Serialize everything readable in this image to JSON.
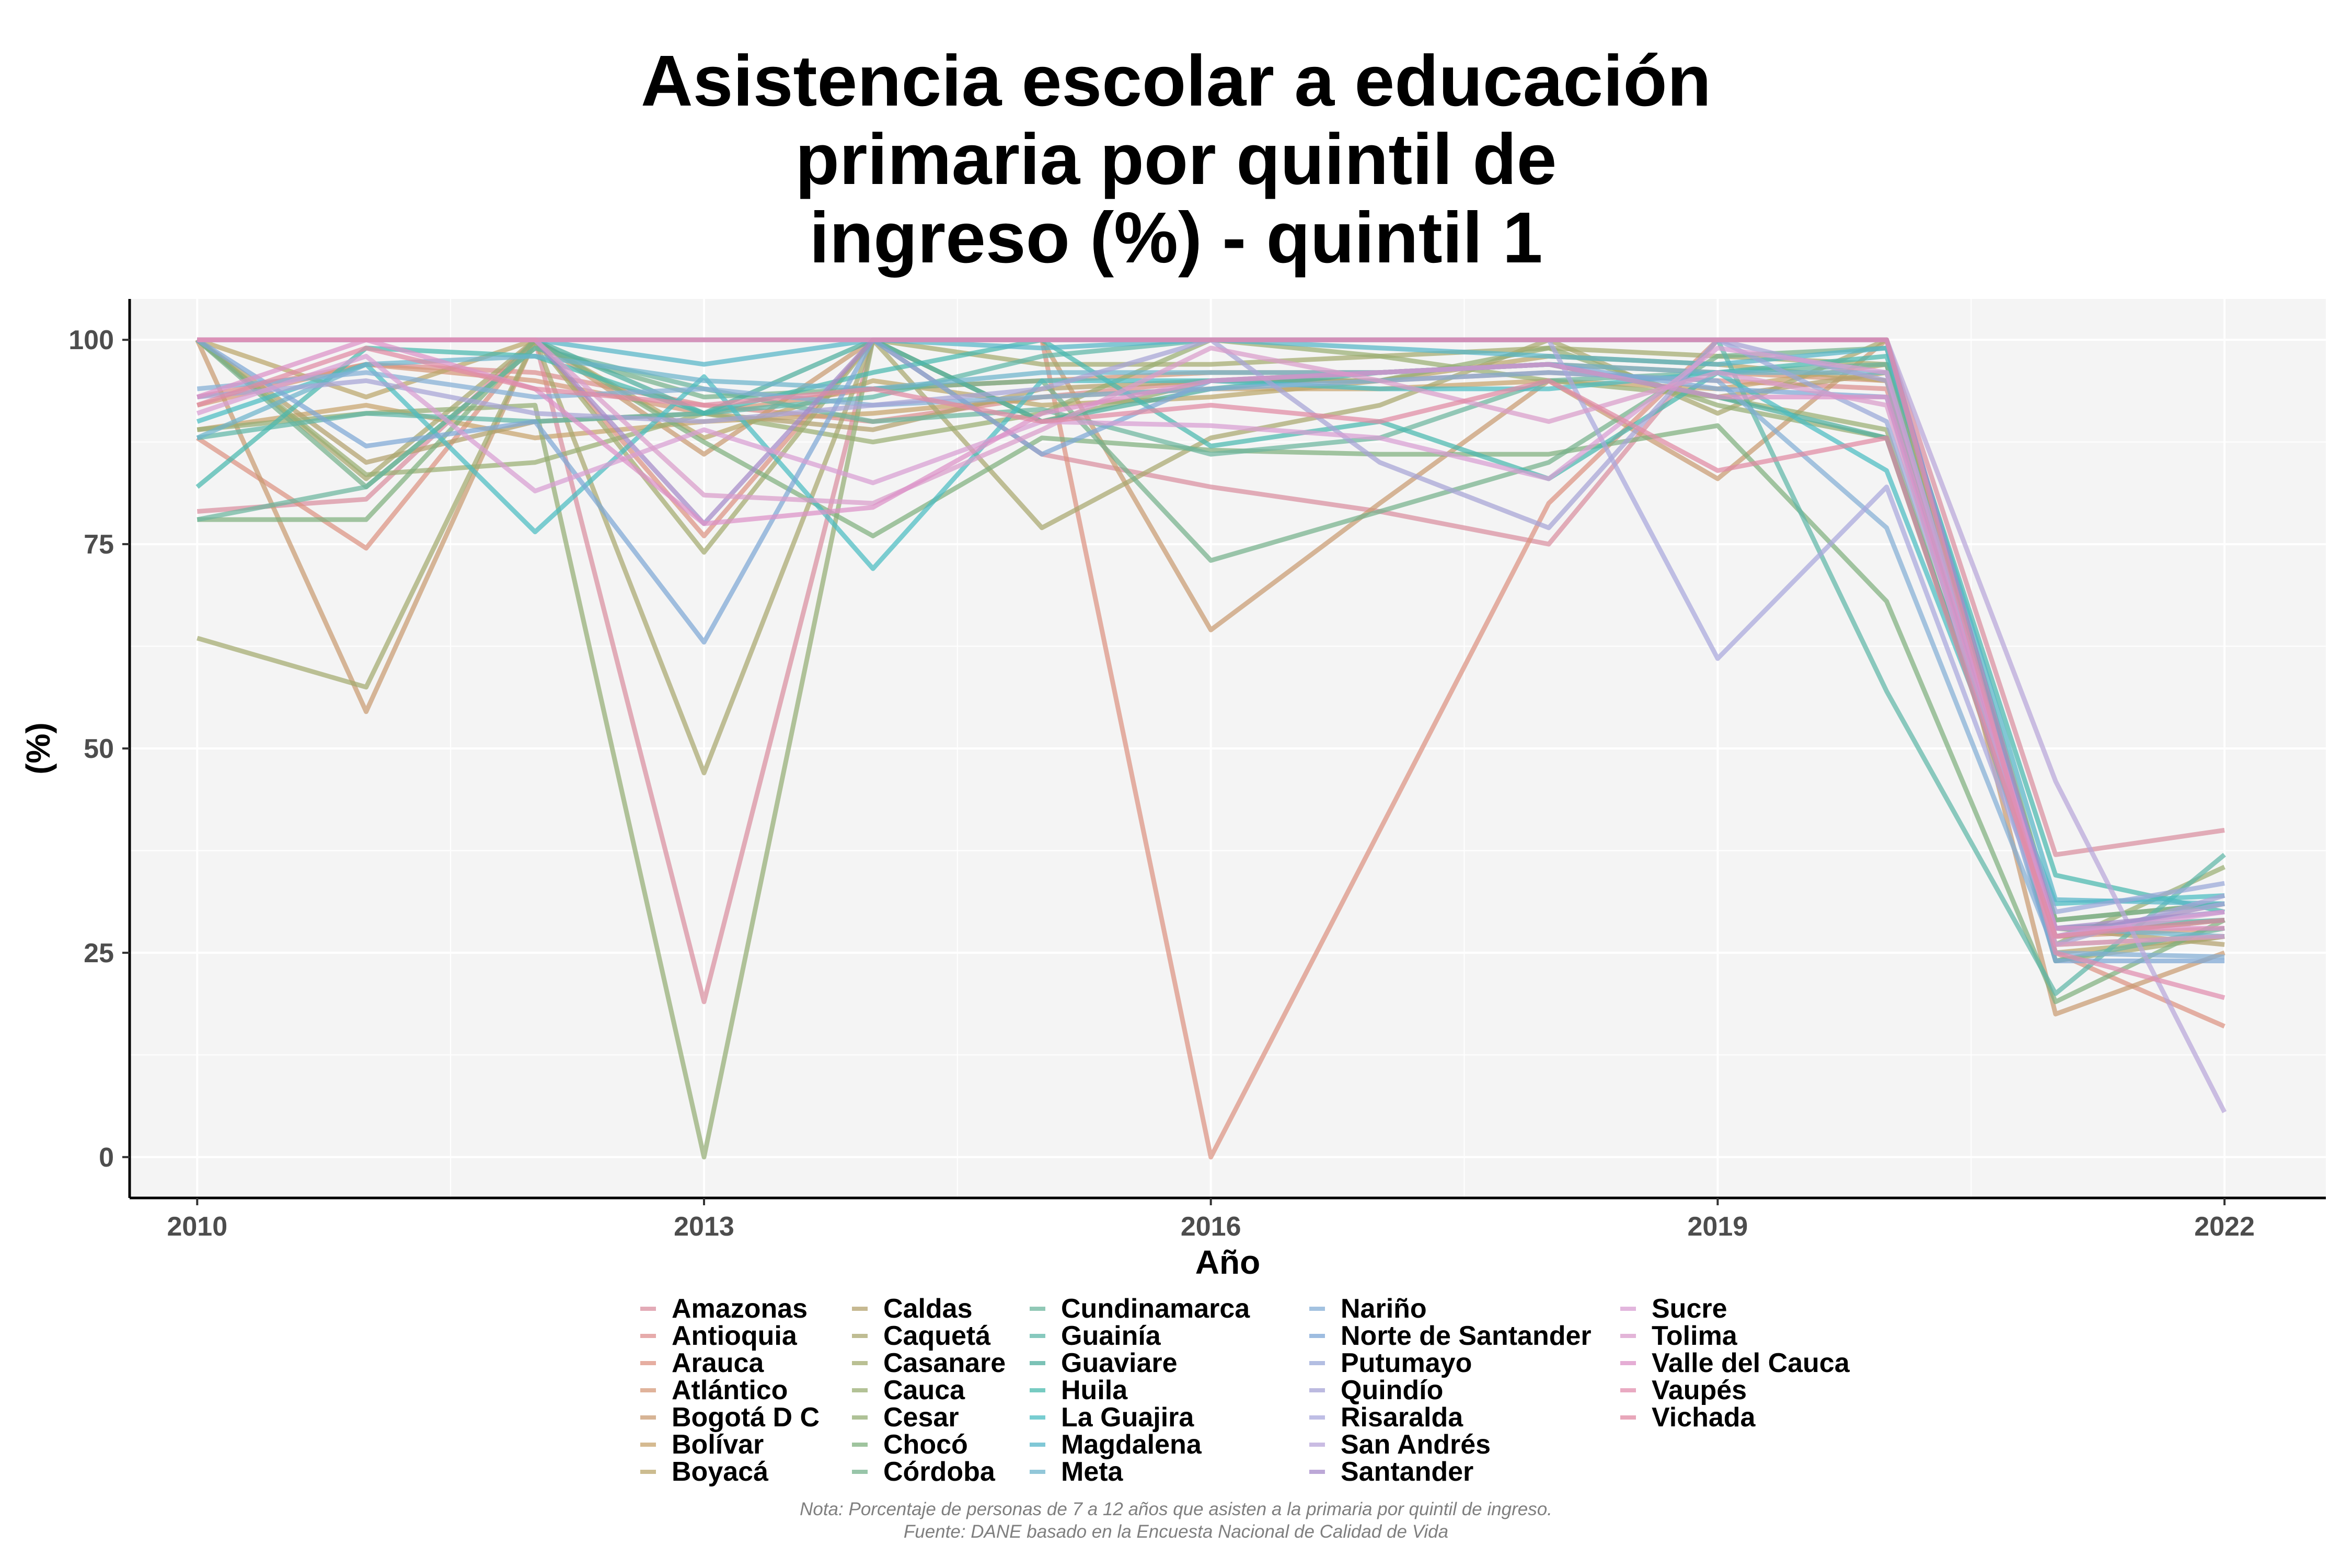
{
  "title_lines": [
    "Asistencia escolar a educación",
    "primaria por quintil de",
    "ingreso (%) - quintil 1"
  ],
  "footnote": {
    "note": "Nota: Porcentaje de personas de 7 a 12 años que asisten a la primaria por quintil de ingreso.",
    "source": "Fuente: DANE basado en la Encuesta Nacional de Calidad de Vida"
  },
  "chart_data": {
    "type": "line",
    "title": "Asistencia escolar a educación primaria por quintil de ingreso (%) - quintil 1",
    "xlabel": "Año",
    "ylabel": "(%)",
    "xlim": [
      2009.6,
      2022.6
    ],
    "ylim": [
      -5,
      105
    ],
    "x_ticks": [
      2010,
      2013,
      2016,
      2019,
      2022
    ],
    "y_ticks": [
      0,
      25,
      50,
      75,
      100
    ],
    "grid": true,
    "legend_position": "bottom",
    "x": [
      2010,
      2011,
      2012,
      2013,
      2014,
      2015,
      2016,
      2017,
      2018,
      2019,
      2020,
      2021,
      2022
    ],
    "series": [
      {
        "name": "Amazonas",
        "color": "#d98f9f",
        "values": [
          79,
          80.5,
          100,
          19,
          100,
          86,
          82,
          79,
          75,
          100,
          100,
          37,
          40
        ]
      },
      {
        "name": "Antioquia",
        "color": "#dd8f8f",
        "values": [
          93,
          97,
          96,
          92,
          90,
          93,
          95,
          95,
          96,
          95,
          94,
          27,
          31
        ]
      },
      {
        "name": "Arauca",
        "color": "#dd9382",
        "values": [
          88,
          74.5,
          100,
          76,
          100,
          100,
          0,
          40,
          80,
          100,
          100,
          25,
          16
        ]
      },
      {
        "name": "Atlántico",
        "color": "#d5997a",
        "values": [
          92,
          97,
          95,
          91,
          94,
          95,
          96,
          96,
          97,
          96,
          95,
          27,
          28
        ]
      },
      {
        "name": "Bogotá D C",
        "color": "#c99b71",
        "values": [
          100,
          54.5,
          100,
          86,
          100,
          100,
          64.5,
          80,
          95,
          83,
          100,
          17.5,
          25
        ]
      },
      {
        "name": "Bolívar",
        "color": "#c7a36c",
        "values": [
          89,
          92,
          88,
          90,
          91,
          93,
          94,
          94,
          95,
          94,
          97,
          26,
          27
        ]
      },
      {
        "name": "Boyacá",
        "color": "#bba66b",
        "values": [
          100,
          93,
          100,
          88,
          95,
          92,
          93,
          95,
          98,
          97,
          95,
          25,
          27
        ]
      },
      {
        "name": "Caldas",
        "color": "#b3a16d",
        "values": [
          100,
          85,
          90,
          91,
          89,
          94,
          95,
          96,
          97,
          93,
          96,
          28,
          26
        ]
      },
      {
        "name": "Caquetá",
        "color": "#a9a76f",
        "values": [
          100,
          83,
          100,
          47,
          100,
          77,
          88,
          92,
          100,
          91,
          100,
          24,
          27
        ]
      },
      {
        "name": "Casanare",
        "color": "#a3ab6f",
        "values": [
          63.5,
          57.5,
          100,
          74,
          100,
          97,
          97,
          98,
          99,
          98,
          97,
          29,
          31
        ]
      },
      {
        "name": "Cauca",
        "color": "#9aae73",
        "values": [
          100,
          83.5,
          85,
          91,
          87.5,
          91,
          100,
          98,
          95,
          93,
          89,
          26,
          35.5
        ]
      },
      {
        "name": "Cesar",
        "color": "#94ad74",
        "values": [
          89,
          91,
          92,
          0,
          100,
          90,
          95,
          95,
          99,
          92,
          88,
          27,
          29
        ]
      },
      {
        "name": "Chocó",
        "color": "#7fb07e",
        "values": [
          78,
          78,
          100,
          87.5,
          76,
          88,
          86.5,
          86,
          86,
          89.5,
          68,
          19,
          29
        ]
      },
      {
        "name": "Córdoba",
        "color": "#76b28c",
        "values": [
          100,
          82,
          99,
          93,
          94,
          95,
          73,
          79,
          85,
          98,
          99,
          29,
          31
        ]
      },
      {
        "name": "Cundinamarca",
        "color": "#6cb69e",
        "values": [
          78,
          82,
          99,
          94,
          90,
          91.5,
          86,
          88,
          95,
          96,
          97,
          24,
          28
        ]
      },
      {
        "name": "Guainía",
        "color": "#5fb7a8",
        "values": [
          88,
          91,
          90,
          91,
          93,
          98,
          100,
          100,
          100,
          100,
          57,
          20,
          37
        ]
      },
      {
        "name": "Guaviare",
        "color": "#4fae9e",
        "values": [
          100,
          100,
          100,
          91,
          100,
          90,
          94,
          96,
          97,
          93,
          88,
          28,
          29
        ]
      },
      {
        "name": "Huila",
        "color": "#4ab9ae",
        "values": [
          82,
          99,
          98,
          91,
          96,
          100,
          87,
          90,
          83,
          96,
          98,
          34.5,
          30
        ]
      },
      {
        "name": "La Guajira",
        "color": "#4bbcc2",
        "values": [
          90,
          97,
          76.5,
          95.5,
          72,
          95,
          95,
          94,
          94,
          96,
          84,
          31,
          32
        ]
      },
      {
        "name": "Magdalena",
        "color": "#56b6c8",
        "values": [
          100,
          100,
          100,
          97,
          100,
          99,
          100,
          99,
          98,
          97,
          99,
          31.5,
          31
        ]
      },
      {
        "name": "Meta",
        "color": "#6db4cc",
        "values": [
          88,
          97,
          98,
          95,
          94,
          96,
          96,
          96,
          97,
          96,
          96,
          28,
          27
        ]
      },
      {
        "name": "Nariño",
        "color": "#84aed5",
        "values": [
          94,
          96,
          93,
          94,
          92,
          93,
          94,
          95,
          96,
          95,
          77,
          25,
          24.5
        ]
      },
      {
        "name": "Norte de Santander",
        "color": "#7ea7d6",
        "values": [
          100,
          87,
          90,
          63,
          100,
          86,
          95,
          96,
          97,
          94,
          93,
          24,
          24
        ]
      },
      {
        "name": "Putumayo",
        "color": "#99a8d8",
        "values": [
          100,
          100,
          100,
          100,
          100,
          100,
          100,
          100,
          100,
          100,
          90,
          30,
          33.5
        ]
      },
      {
        "name": "Quindío",
        "color": "#a6a3d6",
        "values": [
          93,
          95,
          91,
          90,
          92,
          94,
          100,
          85,
          77,
          100,
          95,
          26,
          32
        ]
      },
      {
        "name": "Risaralda",
        "color": "#a9a8dc",
        "values": [
          100,
          100,
          100,
          100,
          100,
          100,
          100,
          100,
          100,
          61,
          82,
          27,
          31
        ]
      },
      {
        "name": "San Andrés",
        "color": "#b8a6da",
        "values": [
          100,
          100,
          100,
          100,
          100,
          100,
          100,
          100,
          100,
          100,
          100,
          46,
          5.5
        ]
      },
      {
        "name": "Santander",
        "color": "#a58bc9",
        "values": [
          100,
          100,
          100,
          77.5,
          100,
          100,
          100,
          100,
          100,
          100,
          100,
          28,
          30
        ]
      },
      {
        "name": "Sucre",
        "color": "#d89ed2",
        "values": [
          91,
          98,
          81.5,
          89,
          82.5,
          90,
          89.5,
          88,
          83,
          99,
          96,
          27,
          30
        ]
      },
      {
        "name": "Tolima",
        "color": "#d99ccb",
        "values": [
          100,
          100,
          100,
          81,
          80,
          89,
          99,
          95,
          90,
          96,
          92,
          26,
          27
        ]
      },
      {
        "name": "Valle del Cauca",
        "color": "#dc91c7",
        "values": [
          93,
          100,
          94,
          77.5,
          79.5,
          91,
          95,
          96,
          97,
          93,
          93,
          28,
          28
        ]
      },
      {
        "name": "Vaupés",
        "color": "#e18eae",
        "values": [
          100,
          100,
          100,
          100,
          100,
          100,
          100,
          100,
          100,
          100,
          100,
          25,
          19.5
        ]
      },
      {
        "name": "Vichada",
        "color": "#e08aa3",
        "values": [
          92,
          99,
          94,
          92,
          94,
          90,
          92,
          90,
          95,
          84,
          88,
          27,
          29
        ]
      }
    ]
  }
}
